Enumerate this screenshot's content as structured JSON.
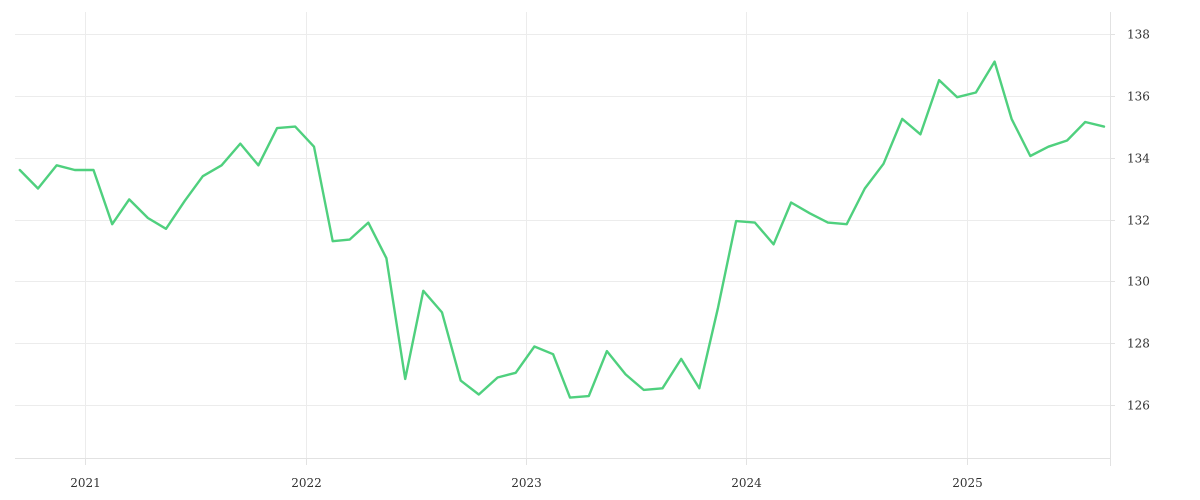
{
  "chart_data": {
    "type": "line",
    "title": "",
    "xlabel": "",
    "ylabel": "",
    "x_ticks": [
      "2021",
      "2022",
      "2023",
      "2024",
      "2025"
    ],
    "x_tick_dates": [
      "2021-01-01",
      "2022-01-01",
      "2023-01-01",
      "2024-01-01",
      "2025-01-01"
    ],
    "y_ticks": [
      126,
      128,
      130,
      132,
      134,
      136,
      138
    ],
    "ylim": [
      124.3,
      138.7
    ],
    "xlim": [
      "2020-09-07",
      "2025-08-25"
    ],
    "grid": true,
    "y_axis_side": "right",
    "color": "#4fd07e",
    "series": [
      {
        "x": [
          "2020-09-15",
          "2020-10-15",
          "2020-11-15",
          "2020-12-15",
          "2021-01-15",
          "2021-02-15",
          "2021-03-15",
          "2021-04-15",
          "2021-05-15",
          "2021-06-15",
          "2021-07-15",
          "2021-08-15",
          "2021-09-15",
          "2021-10-15",
          "2021-11-15",
          "2021-12-15",
          "2022-01-15",
          "2022-02-15",
          "2022-03-15",
          "2022-04-15",
          "2022-05-15",
          "2022-06-15",
          "2022-07-15",
          "2022-08-15",
          "2022-09-15",
          "2022-10-15",
          "2022-11-15",
          "2022-12-15",
          "2023-01-15",
          "2023-02-15",
          "2023-03-15",
          "2023-04-15",
          "2023-05-15",
          "2023-06-15",
          "2023-07-15",
          "2023-08-15",
          "2023-09-15",
          "2023-10-15",
          "2023-11-15",
          "2023-12-15",
          "2024-01-15",
          "2024-02-15",
          "2024-03-15",
          "2024-04-15",
          "2024-05-15",
          "2024-06-15",
          "2024-07-15",
          "2024-08-15",
          "2024-09-15",
          "2024-10-15",
          "2024-11-15",
          "2024-12-15",
          "2025-01-15",
          "2025-02-15",
          "2025-03-15",
          "2025-04-15",
          "2025-05-15",
          "2025-06-15",
          "2025-07-15",
          "2025-08-15"
        ],
        "values": [
          133.6,
          133.0,
          133.75,
          133.6,
          133.6,
          131.85,
          132.65,
          132.05,
          131.7,
          132.6,
          133.4,
          133.75,
          134.45,
          133.75,
          134.95,
          135.0,
          134.35,
          131.3,
          131.35,
          131.9,
          130.75,
          126.85,
          129.7,
          129.0,
          126.8,
          126.35,
          126.9,
          127.05,
          127.9,
          127.65,
          126.25,
          126.3,
          127.75,
          127.0,
          126.5,
          126.55,
          127.5,
          126.55,
          129.15,
          131.95,
          131.9,
          131.2,
          132.55,
          132.2,
          131.9,
          131.85,
          133.0,
          133.8,
          135.25,
          134.75,
          136.5,
          135.95,
          136.1,
          137.1,
          135.25,
          134.05,
          134.35,
          134.55,
          135.15,
          135.0
        ]
      }
    ]
  }
}
